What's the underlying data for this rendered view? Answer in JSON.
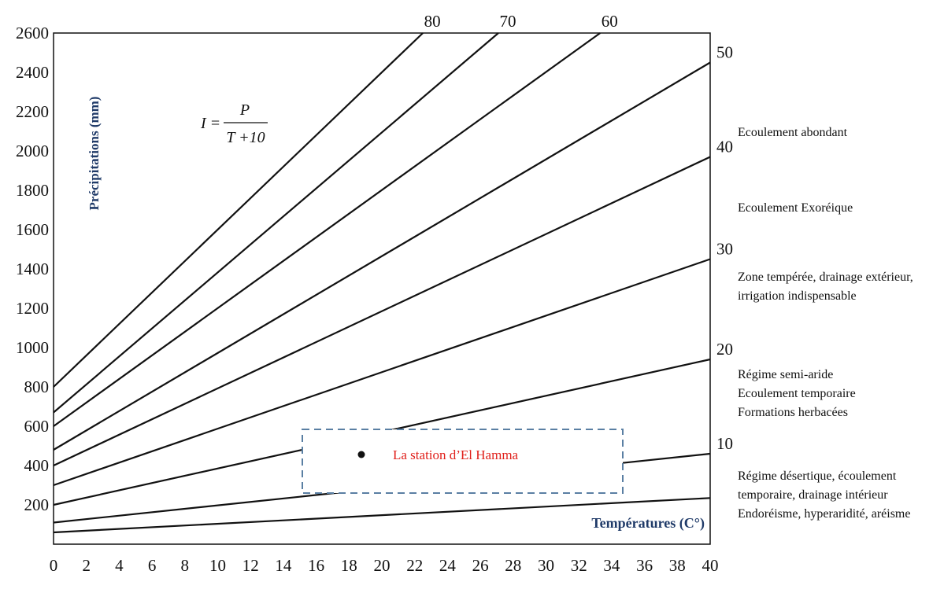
{
  "chart_data": {
    "type": "line",
    "title": "",
    "xlabel": "Températures (C°)",
    "ylabel": "Précipitations (mm)",
    "xlim": [
      0,
      40
    ],
    "ylim": [
      0,
      2600
    ],
    "x_ticks": [
      "0",
      "2",
      "4",
      "6",
      "8",
      "10",
      "12",
      "14",
      "16",
      "18",
      "20",
      "22",
      "24",
      "26",
      "28",
      "30",
      "32",
      "34",
      "36",
      "38",
      "40"
    ],
    "y_ticks": [
      "200",
      "400",
      "600",
      "800",
      "1000",
      "1200",
      "1400",
      "1600",
      "1800",
      "2000",
      "2200",
      "2400",
      "2600"
    ],
    "formula": {
      "lhs": "I =",
      "numerator": "P",
      "denominator": "T +10"
    },
    "series": [
      {
        "name": "80",
        "x": [
          0,
          22.5
        ],
        "y": [
          800,
          2600
        ]
      },
      {
        "name": "70",
        "x": [
          0,
          27.1
        ],
        "y": [
          670,
          2600
        ]
      },
      {
        "name": "60",
        "x": [
          0,
          33.3
        ],
        "y": [
          600,
          2600
        ]
      },
      {
        "name": "50",
        "x": [
          0,
          40
        ],
        "y": [
          480,
          2450
        ]
      },
      {
        "name": "40",
        "x": [
          0,
          40
        ],
        "y": [
          400,
          1970
        ]
      },
      {
        "name": "30",
        "x": [
          0,
          40
        ],
        "y": [
          300,
          1450
        ]
      },
      {
        "name": "20",
        "x": [
          0,
          40
        ],
        "y": [
          200,
          940
        ]
      },
      {
        "name": "10",
        "x": [
          0,
          40
        ],
        "y": [
          110,
          460
        ]
      },
      {
        "name": "",
        "x": [
          0,
          40
        ],
        "y": [
          60,
          235
        ]
      }
    ],
    "top_labels": [
      "80",
      "70",
      "60"
    ],
    "right_labels": [
      "50",
      "40",
      "30",
      "20",
      "10"
    ],
    "zones": [
      {
        "lines": [
          "Ecoulement abondant"
        ]
      },
      {
        "lines": [
          "Ecoulement Exoréique"
        ]
      },
      {
        "lines": [
          "Zone tempérée, drainage extérieur,",
          "irrigation indispensable"
        ]
      },
      {
        "lines": [
          "Régime semi-aride",
          "Ecoulement temporaire",
          "Formations herbacées"
        ]
      },
      {
        "lines": [
          "Régime désertique, écoulement",
          "temporaire, drainage intérieur",
          "Endoréisme, hyperaridité, aréisme"
        ]
      }
    ],
    "station": {
      "label": "La station d’El Hamma"
    },
    "grid": false
  },
  "colors": {
    "line": "#111111",
    "axis_label": "#1f3a68",
    "station_text": "#e0201b",
    "station_box": "#5a7fa3"
  }
}
